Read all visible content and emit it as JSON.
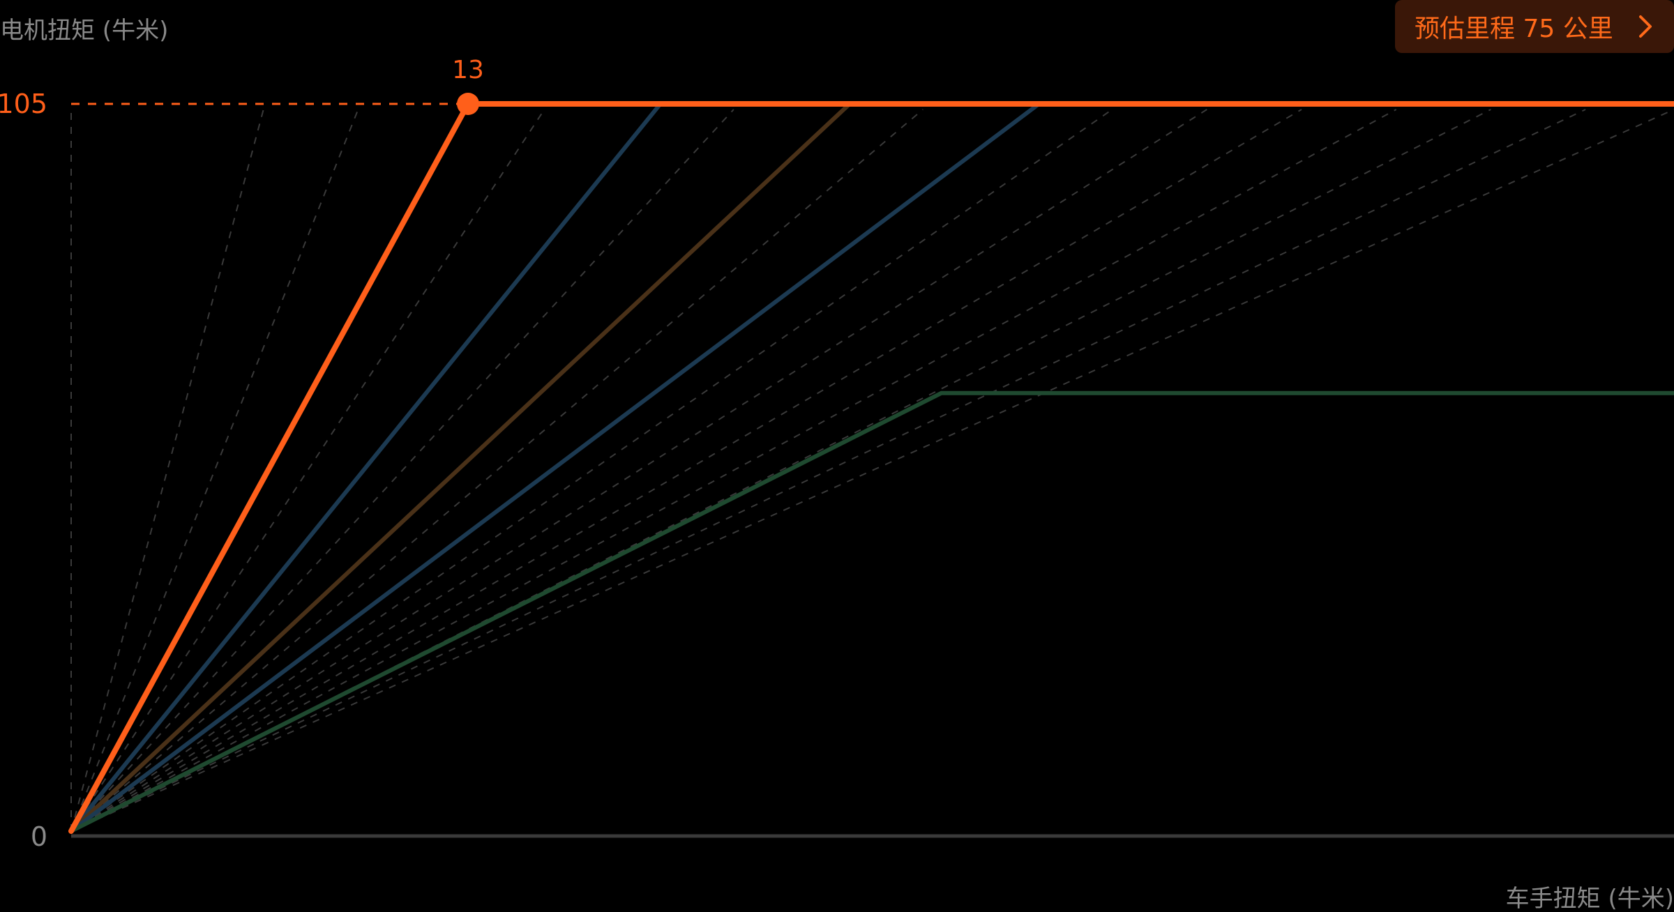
{
  "range_button": {
    "label": "预估里程 75 公里",
    "icon": "chevron-right-icon"
  },
  "colors": {
    "accent": "#ff5f1a",
    "blue_series": "#1c3a52",
    "brown_series": "#4a3118",
    "green_series": "#1f4a30",
    "guide_lines": "#3a3a3a",
    "axis": "#3a3a3a",
    "muted_text": "#8a8a8a",
    "button_bg": "#3a1708"
  },
  "chart_data": {
    "type": "line",
    "title": "",
    "ylabel": "电机扭矩 (牛米)",
    "xlabel": "车手扭矩 (牛米)",
    "ylim": [
      0,
      105
    ],
    "xlim": [
      0,
      52.5
    ],
    "y_ticks": [
      {
        "value": 0,
        "label": "0"
      },
      {
        "value": 105,
        "label": "105"
      }
    ],
    "series": [
      {
        "role": "selected",
        "color": "#ff5f1a",
        "points": [
          [
            0,
            0
          ],
          [
            13,
            105
          ],
          [
            52.5,
            105
          ]
        ]
      },
      {
        "role": "curve",
        "color": "#1c3a52",
        "points": [
          [
            0,
            0
          ],
          [
            19.3,
            105
          ]
        ]
      },
      {
        "role": "curve",
        "color": "#4a3118",
        "points": [
          [
            0,
            0
          ],
          [
            25.5,
            105
          ]
        ]
      },
      {
        "role": "curve",
        "color": "#1c3a52",
        "points": [
          [
            0,
            0
          ],
          [
            31.7,
            105
          ]
        ]
      },
      {
        "role": "curve",
        "color": "#1f4a30",
        "points": [
          [
            0,
            0
          ],
          [
            28.5,
            63
          ],
          [
            52.5,
            63
          ]
        ]
      }
    ],
    "guide_slopes_x_at_ymax": [
      0,
      6.3,
      9.4,
      15.5,
      21.7,
      27.9,
      34.1,
      37.2,
      40.3,
      43.4,
      46.5,
      49.6,
      52.5
    ],
    "highlight": {
      "x": 13,
      "y": 105,
      "label": "13"
    },
    "grid": false,
    "legend": "none"
  }
}
